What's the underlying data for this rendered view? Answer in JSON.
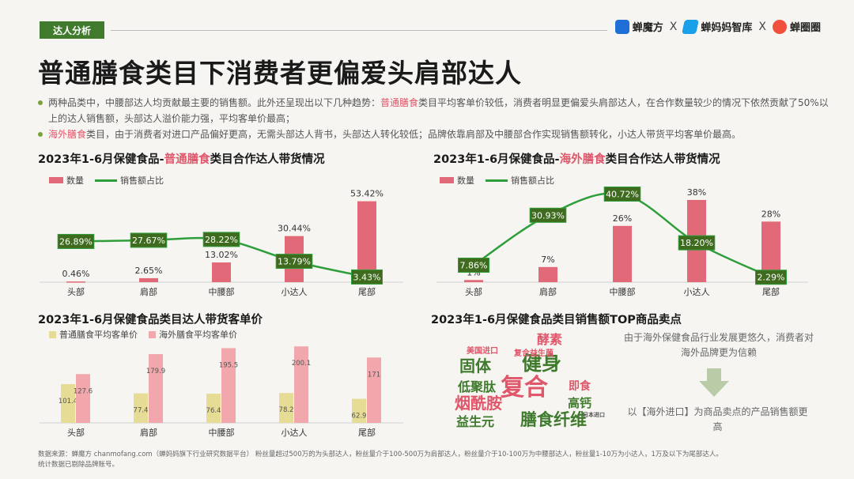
{
  "header": {
    "tag": "达人分析",
    "logos": [
      "蝉魔方",
      "蝉妈妈智库",
      "蝉圈圈"
    ],
    "logo_sep": "X",
    "logo_colors": [
      "#1f6fd6",
      "#1aa0e8",
      "#f0503c"
    ]
  },
  "title": "普通膳食类目下消费者更偏爱头肩部达人",
  "bullets": {
    "b1_pre": "两种品类中，中腰部达人均贡献最主要的销售额。此外还呈现出以下几种趋势：",
    "b1_hl": "普通膳食",
    "b1_post": "类目平均客单价较低，消费者明显更偏爱头肩部达人，在合作数量较少的情况下依然贡献了50%以上的达人销售额，头部达人溢价能力强，平均客单价最高；",
    "b2_hl": "海外膳食",
    "b2_post": "类目，由于消费者对进口产品偏好更高，无需头部达人背书，头部达人转化较低；品牌依靠肩部及中腰部合作实现销售额转化，小达人带货平均客单价最高。"
  },
  "panels": {
    "p1_pre": "2023年1-6月保健食品-",
    "p1_hl": "普通膳食",
    "p1_post": "类目合作达人带货情况",
    "p2_pre": "2023年1-6月保健食品-",
    "p2_hl": "海外膳食",
    "p2_post": "类目合作达人带货情况",
    "p3": "2023年1-6月保健食品类目达人带货客单价",
    "p4": "2023年1-6月保健食品类目销售额TOP商品卖点"
  },
  "colors": {
    "bar": "#e26a78",
    "line": "#2e9e3a",
    "label_bg": "#3f6b1f",
    "label_fg": "#ffffff",
    "yellow": "#e6dc96",
    "pink": "#f1a7ac"
  },
  "chart_data": [
    {
      "type": "bar",
      "title": "2023年1-6月保健食品-普通膳食类目合作达人带货情况",
      "categories": [
        "头部",
        "肩部",
        "中腰部",
        "小达人",
        "尾部"
      ],
      "series": [
        {
          "name": "数量",
          "kind": "bar",
          "values": [
            0.46,
            2.65,
            13.02,
            30.44,
            53.42
          ],
          "labels": [
            "0.46%",
            "2.65%",
            "13.02%",
            "30.44%",
            "53.42%"
          ]
        },
        {
          "name": "销售额占比",
          "kind": "line",
          "values": [
            26.89,
            27.67,
            28.22,
            13.79,
            3.43
          ],
          "labels": [
            "26.89%",
            "27.67%",
            "28.22%",
            "13.79%",
            "3.43%"
          ]
        }
      ],
      "ylim": [
        0,
        60
      ]
    },
    {
      "type": "bar",
      "title": "2023年1-6月保健食品-海外膳食类目合作达人带货情况",
      "categories": [
        "头部",
        "肩部",
        "中腰部",
        "小达人",
        "尾部"
      ],
      "series": [
        {
          "name": "数量",
          "kind": "bar",
          "values": [
            1,
            7,
            26,
            38,
            28
          ],
          "labels": [
            "1%",
            "7%",
            "26%",
            "38%",
            "28%"
          ]
        },
        {
          "name": "销售额占比",
          "kind": "line",
          "values": [
            7.86,
            30.93,
            40.72,
            18.2,
            2.29
          ],
          "labels": [
            "7.86%",
            "30.93%",
            "40.72%",
            "18.20%",
            "2.29%"
          ]
        }
      ],
      "ylim": [
        0,
        42
      ]
    },
    {
      "type": "bar",
      "title": "2023年1-6月保健食品类目达人带货客单价",
      "categories": [
        "头部",
        "肩部",
        "中腰部",
        "小达人",
        "尾部"
      ],
      "series": [
        {
          "name": "普通膳食平均客单价",
          "values": [
            101.4,
            77.4,
            76.4,
            78.2,
            62.9
          ],
          "labels": [
            "101.4",
            "77.4",
            "76.4",
            "78.2",
            "62.9"
          ]
        },
        {
          "name": "海外膳食平均客单价",
          "values": [
            127.6,
            179.9,
            195.5,
            200.1,
            171
          ],
          "labels": [
            "127.6",
            "179.9",
            "195.5",
            "200.1",
            "171"
          ]
        }
      ],
      "ylim": [
        0,
        215
      ]
    }
  ],
  "wordcloud": {
    "words": [
      {
        "text": "健身",
        "color": "#3f7a2d"
      },
      {
        "text": "复合",
        "color": "#e0566a"
      },
      {
        "text": "膳食纤维",
        "color": "#3f7a2d"
      },
      {
        "text": "固体",
        "color": "#3f7a2d"
      },
      {
        "text": "烟酰胺",
        "color": "#e0566a"
      },
      {
        "text": "低聚肽",
        "color": "#3f7a2d"
      },
      {
        "text": "益生元",
        "color": "#3f7a2d"
      },
      {
        "text": "酵素",
        "color": "#e0566a"
      },
      {
        "text": "高钙",
        "color": "#3f7a2d"
      },
      {
        "text": "即食",
        "color": "#e0566a"
      },
      {
        "text": "复合益生菌",
        "color": "#e0566a"
      },
      {
        "text": "美国进口",
        "color": "#e0566a"
      },
      {
        "text": "日本进口",
        "color": "#555555"
      }
    ],
    "note1": "由于海外保健食品行业发展更悠久，消费者对海外品牌更为信赖",
    "note2": "以【海外进口】为商品卖点的产品销售额更高"
  },
  "footer": {
    "line1": "数据来源：蝉魔方 chanmofang.com（蝉妈妈旗下行业研究数据平台） 粉丝量超过500万的为头部达人，粉丝量介于100-500万为肩部达人，粉丝量介于10-100万为中腰部达人，粉丝量1-10万为小达人，1万及以下为尾部达人。",
    "line2": "统计数据已剔除品牌账号。"
  }
}
